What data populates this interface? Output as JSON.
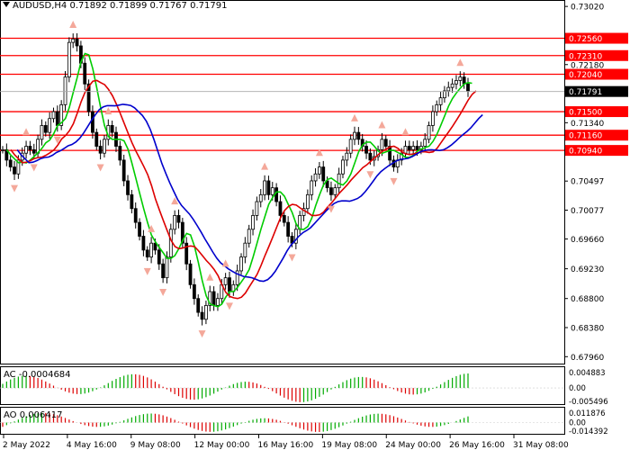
{
  "header": {
    "symbol": "AUDUSD,H4",
    "quote": "0.71892 0.71899 0.71767 0.71791"
  },
  "colors": {
    "hline": "#ff0000",
    "ma_fast": "#00cc00",
    "ma_mid": "#dd0000",
    "ma_slow": "#0000cc",
    "candle": "#000000",
    "arrow": "#f4a89a",
    "ind_up": "#00aa00",
    "ind_down": "#dd0000",
    "price_tag_bg": "#ff0000",
    "current_tag_bg": "#000000"
  },
  "chart_data": {
    "type": "candlestick",
    "symbol": "AUDUSD",
    "timeframe": "H4",
    "ylim": [
      0.6786,
      0.731
    ],
    "price_labels": [
      "0.73020",
      "0.72180",
      "0.71340",
      "0.70497",
      "0.70077",
      "0.69660",
      "0.69230",
      "0.68800",
      "0.68380",
      "0.67960"
    ],
    "price_values": [
      0.7302,
      0.7218,
      0.7134,
      0.70497,
      0.70077,
      0.6966,
      0.6923,
      0.688,
      0.6838,
      0.6796
    ],
    "levels": [
      {
        "label": "0.72560",
        "value": 0.7256
      },
      {
        "label": "0.72310",
        "value": 0.7231
      },
      {
        "label": "0.72040",
        "value": 0.7204
      },
      {
        "label": "0.71500",
        "value": 0.715
      },
      {
        "label": "0.71160",
        "value": 0.7116
      },
      {
        "label": "0.70940",
        "value": 0.7094
      }
    ],
    "current_price": {
      "label": "0.71791",
      "value": 0.71791
    },
    "time_labels": [
      "2 May 2022",
      "4 May 16:00",
      "9 May 08:00",
      "12 May 00:00",
      "16 May 16:00",
      "19 May 08:00",
      "24 May 00:00",
      "26 May 16:00",
      "31 May 08:00"
    ],
    "candle_path": [
      0.7095,
      0.708,
      0.707,
      0.706,
      0.708,
      0.709,
      0.71,
      0.7095,
      0.709,
      0.711,
      0.713,
      0.712,
      0.714,
      0.715,
      0.713,
      0.716,
      0.72,
      0.725,
      0.7255,
      0.7245,
      0.722,
      0.719,
      0.715,
      0.712,
      0.71,
      0.709,
      0.711,
      0.713,
      0.712,
      0.71,
      0.708,
      0.705,
      0.703,
      0.701,
      0.699,
      0.697,
      0.695,
      0.694,
      0.696,
      0.695,
      0.693,
      0.691,
      0.694,
      0.698,
      0.7,
      0.699,
      0.696,
      0.693,
      0.69,
      0.688,
      0.686,
      0.685,
      0.687,
      0.689,
      0.687,
      0.688,
      0.69,
      0.691,
      0.689,
      0.69,
      0.692,
      0.694,
      0.696,
      0.698,
      0.7,
      0.702,
      0.703,
      0.705,
      0.703,
      0.704,
      0.702,
      0.7,
      0.699,
      0.697,
      0.696,
      0.698,
      0.7,
      0.701,
      0.703,
      0.705,
      0.706,
      0.707,
      0.705,
      0.704,
      0.703,
      0.704,
      0.706,
      0.708,
      0.709,
      0.711,
      0.712,
      0.711,
      0.71,
      0.709,
      0.708,
      0.7085,
      0.7095,
      0.711,
      0.71,
      0.708,
      0.707,
      0.708,
      0.709,
      0.71,
      0.7095,
      0.71,
      0.7095,
      0.71,
      0.711,
      0.713,
      0.715,
      0.716,
      0.717,
      0.718,
      0.7185,
      0.719,
      0.7195,
      0.72,
      0.719,
      0.718
    ],
    "indicators": [
      {
        "name": "AC",
        "value_label": "-0.0004684",
        "ticks": [
          "0.004883",
          "0.00",
          "-0.005496"
        ]
      },
      {
        "name": "AO",
        "value_label": "0.006417",
        "ticks": [
          "0.011876",
          "0.00",
          "-0.014392"
        ]
      }
    ]
  }
}
